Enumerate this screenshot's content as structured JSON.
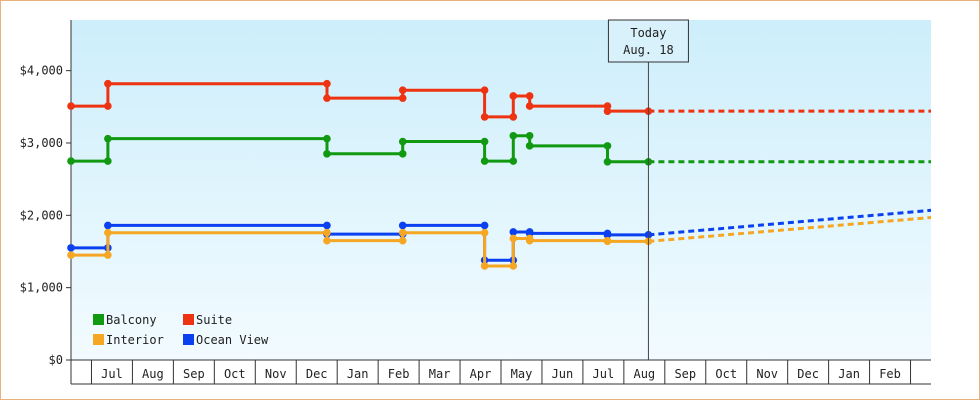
{
  "chart_data": {
    "type": "line",
    "step": true,
    "y_unit": "USD",
    "ylim": [
      0,
      4700
    ],
    "y_ticks": [
      {
        "value": 0,
        "label": "$0"
      },
      {
        "value": 1000,
        "label": "$1,000"
      },
      {
        "value": 2000,
        "label": "$2,000"
      },
      {
        "value": 3000,
        "label": "$3,000"
      },
      {
        "value": 4000,
        "label": "$4,000"
      }
    ],
    "x_range": [
      0,
      21
    ],
    "months": [
      "Jul",
      "Aug",
      "Sep",
      "Oct",
      "Nov",
      "Dec",
      "Jan",
      "Feb",
      "Mar",
      "Apr",
      "May",
      "Jun",
      "Jul",
      "Aug",
      "Sep",
      "Oct",
      "Nov",
      "Dec",
      "Jan",
      "Feb"
    ],
    "today": {
      "line1": "Today",
      "line2": "Aug. 18",
      "x": 14.1
    },
    "legend": {
      "placement": "bottom-left",
      "items": [
        {
          "label": "Balcony",
          "color": "#119911"
        },
        {
          "label": "Suite",
          "color": "#ee3311"
        },
        {
          "label": "Interior",
          "color": "#f5a623"
        },
        {
          "label": "Ocean View",
          "color": "#0a40f0"
        }
      ]
    },
    "series": [
      {
        "name": "Suite",
        "color": "#ee3311",
        "points": [
          [
            0,
            3510
          ],
          [
            0.9,
            3510
          ],
          [
            0.9,
            3820
          ],
          [
            6.25,
            3820
          ],
          [
            6.25,
            3620
          ],
          [
            8.1,
            3620
          ],
          [
            8.1,
            3730
          ],
          [
            10.1,
            3730
          ],
          [
            10.1,
            3360
          ],
          [
            10.8,
            3360
          ],
          [
            10.8,
            3650
          ],
          [
            11.2,
            3650
          ],
          [
            11.2,
            3510
          ],
          [
            13.1,
            3510
          ],
          [
            13.1,
            3440
          ],
          [
            14.1,
            3440
          ]
        ],
        "projection": [
          [
            14.1,
            3440
          ],
          [
            21,
            3440
          ]
        ]
      },
      {
        "name": "Balcony",
        "color": "#119911",
        "points": [
          [
            0,
            2750
          ],
          [
            0.9,
            2750
          ],
          [
            0.9,
            3060
          ],
          [
            6.25,
            3060
          ],
          [
            6.25,
            2850
          ],
          [
            8.1,
            2850
          ],
          [
            8.1,
            3020
          ],
          [
            10.1,
            3020
          ],
          [
            10.1,
            2750
          ],
          [
            10.8,
            2750
          ],
          [
            10.8,
            3100
          ],
          [
            11.2,
            3100
          ],
          [
            11.2,
            2960
          ],
          [
            13.1,
            2960
          ],
          [
            13.1,
            2740
          ],
          [
            14.1,
            2740
          ]
        ],
        "projection": [
          [
            14.1,
            2740
          ],
          [
            21,
            2740
          ]
        ]
      },
      {
        "name": "Ocean View",
        "color": "#0a40f0",
        "points": [
          [
            0,
            1550
          ],
          [
            0.9,
            1550
          ],
          [
            0.9,
            1860
          ],
          [
            6.25,
            1860
          ],
          [
            6.25,
            1740
          ],
          [
            8.1,
            1740
          ],
          [
            8.1,
            1860
          ],
          [
            10.1,
            1860
          ],
          [
            10.1,
            1380
          ],
          [
            10.8,
            1380
          ],
          [
            10.8,
            1770
          ],
          [
            11.2,
            1770
          ],
          [
            11.2,
            1750
          ],
          [
            13.1,
            1750
          ],
          [
            13.1,
            1730
          ],
          [
            14.1,
            1730
          ]
        ],
        "projection": [
          [
            14.1,
            1730
          ],
          [
            21,
            2070
          ]
        ]
      },
      {
        "name": "Interior",
        "color": "#f5a623",
        "points": [
          [
            0,
            1450
          ],
          [
            0.9,
            1450
          ],
          [
            0.9,
            1760
          ],
          [
            6.25,
            1760
          ],
          [
            6.25,
            1650
          ],
          [
            8.1,
            1650
          ],
          [
            8.1,
            1760
          ],
          [
            10.1,
            1760
          ],
          [
            10.1,
            1300
          ],
          [
            10.8,
            1300
          ],
          [
            10.8,
            1680
          ],
          [
            11.2,
            1680
          ],
          [
            11.2,
            1650
          ],
          [
            13.1,
            1650
          ],
          [
            13.1,
            1640
          ],
          [
            14.1,
            1640
          ]
        ],
        "projection": [
          [
            14.1,
            1640
          ],
          [
            21,
            1970
          ]
        ]
      }
    ]
  }
}
